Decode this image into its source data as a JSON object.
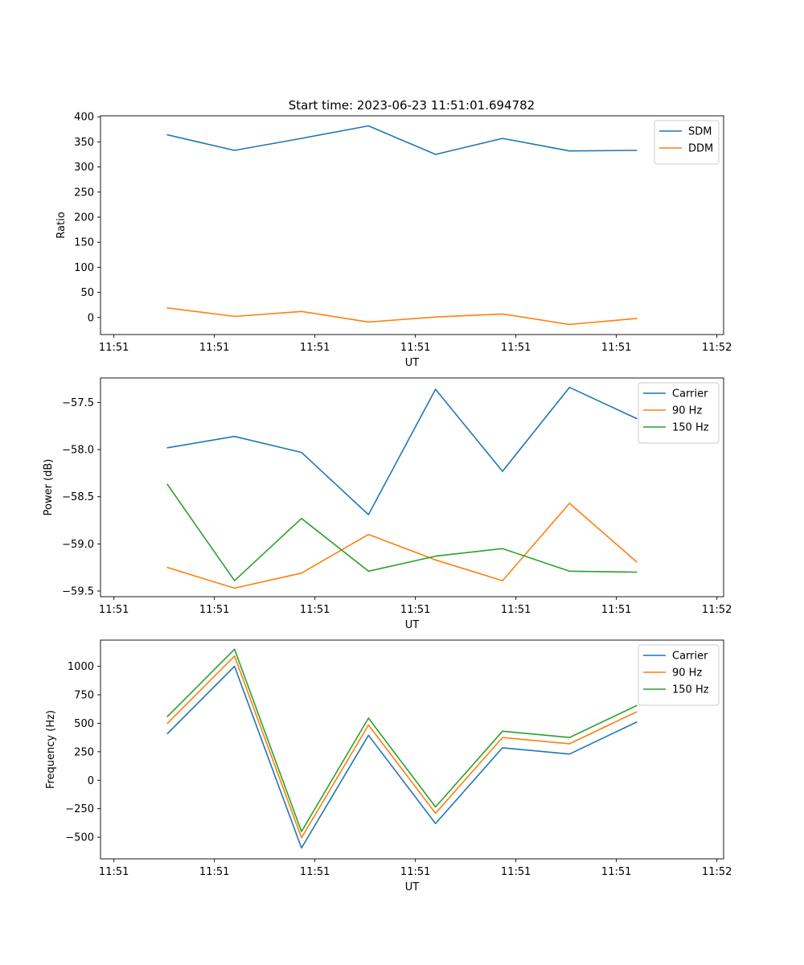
{
  "figure": {
    "title": "Start time: 2023-06-23 11:51:01.694782"
  },
  "chart_data": [
    {
      "type": "line",
      "title": "Start time: 2023-06-23 11:51:01.694782",
      "xlabel": "UT",
      "ylabel": "Ratio",
      "x": [
        1,
        2,
        3,
        4,
        5,
        6,
        7,
        8
      ],
      "x_tick_values": [
        0.2,
        1.7,
        3.2,
        4.7,
        6.2,
        7.7,
        9.2
      ],
      "x_tick_labels": [
        "11:51",
        "11:51",
        "11:51",
        "11:51",
        "11:51",
        "11:51",
        "11:52"
      ],
      "xlim": [
        0,
        9.3
      ],
      "ylim": [
        -34,
        402
      ],
      "y_ticks": [
        0,
        50,
        100,
        150,
        200,
        250,
        300,
        350,
        400
      ],
      "y_tick_labels": [
        "0",
        "50",
        "100",
        "150",
        "200",
        "250",
        "300",
        "350",
        "400"
      ],
      "legend_position": "top-right",
      "series": [
        {
          "name": "SDM",
          "color": "#1f77b4",
          "values": [
            364,
            333,
            357,
            382,
            325,
            357,
            332,
            333
          ]
        },
        {
          "name": "DDM",
          "color": "#ff7f0e",
          "values": [
            19,
            2,
            12,
            -9,
            1,
            7,
            -14,
            -2
          ]
        }
      ]
    },
    {
      "type": "line",
      "xlabel": "UT",
      "ylabel": "Power (dB)",
      "x": [
        1,
        2,
        3,
        4,
        5,
        6,
        7,
        8
      ],
      "x_tick_values": [
        0.2,
        1.7,
        3.2,
        4.7,
        6.2,
        7.7,
        9.2
      ],
      "x_tick_labels": [
        "11:51",
        "11:51",
        "11:51",
        "11:51",
        "11:51",
        "11:51",
        "11:52"
      ],
      "xlim": [
        0,
        9.3
      ],
      "ylim": [
        -59.56,
        -57.24
      ],
      "y_ticks": [
        -59.5,
        -59.0,
        -58.5,
        -58.0,
        -57.5
      ],
      "y_tick_labels": [
        "−59.5",
        "−59.0",
        "−58.5",
        "−58.0",
        "−57.5"
      ],
      "legend_position": "top-right",
      "series": [
        {
          "name": "Carrier",
          "color": "#1f77b4",
          "values": [
            -57.98,
            -57.86,
            -58.03,
            -58.69,
            -57.36,
            -58.23,
            -57.34,
            -57.67
          ]
        },
        {
          "name": "90 Hz",
          "color": "#ff7f0e",
          "values": [
            -59.25,
            -59.47,
            -59.31,
            -58.9,
            -59.17,
            -59.39,
            -58.57,
            -59.19
          ]
        },
        {
          "name": "150 Hz",
          "color": "#2ca02c",
          "values": [
            -58.37,
            -59.39,
            -58.73,
            -59.29,
            -59.13,
            -59.05,
            -59.29,
            -59.3
          ]
        }
      ]
    },
    {
      "type": "line",
      "xlabel": "UT",
      "ylabel": "Frequency (Hz)",
      "x": [
        1,
        2,
        3,
        4,
        5,
        6,
        7,
        8
      ],
      "x_tick_values": [
        0.2,
        1.7,
        3.2,
        4.7,
        6.2,
        7.7,
        9.2
      ],
      "x_tick_labels": [
        "11:51",
        "11:51",
        "11:51",
        "11:51",
        "11:51",
        "11:51",
        "11:52"
      ],
      "xlim": [
        0,
        9.3
      ],
      "ylim": [
        -690,
        1230
      ],
      "y_ticks": [
        -500,
        -250,
        0,
        250,
        500,
        750,
        1000
      ],
      "y_tick_labels": [
        "−500",
        "−250",
        "0",
        "250",
        "500",
        "750",
        "1000"
      ],
      "legend_position": "top-right",
      "series": [
        {
          "name": "Carrier",
          "color": "#1f77b4",
          "values": [
            410,
            1000,
            -595,
            395,
            -380,
            285,
            230,
            510
          ]
        },
        {
          "name": "90 Hz",
          "color": "#ff7f0e",
          "values": [
            500,
            1090,
            -505,
            485,
            -290,
            375,
            320,
            600
          ]
        },
        {
          "name": "150 Hz",
          "color": "#2ca02c",
          "values": [
            560,
            1150,
            -450,
            545,
            -235,
            430,
            375,
            655
          ]
        }
      ]
    }
  ]
}
